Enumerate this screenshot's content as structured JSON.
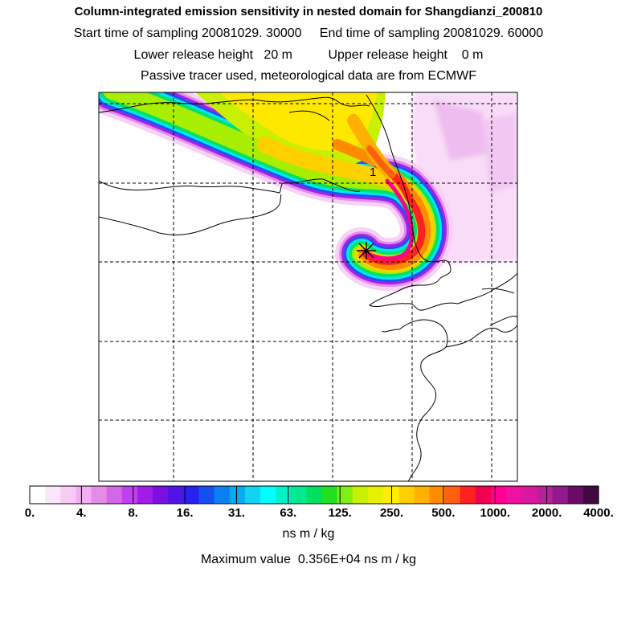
{
  "header": {
    "title": "Column-integrated emission sensitivity in nested domain for Shangdianzi_200810",
    "sampling": "Start time of sampling 20081029. 30000     End time of sampling 20081029. 60000",
    "release": "Lower release height   20 m          Upper release height    0 m",
    "tracer": "Passive tracer used, meteorological data are from ECMWF"
  },
  "map": {
    "release_marker_label": "1",
    "release_icon": "star-release-icon"
  },
  "legend": {
    "colors": [
      "#ffffff",
      "#fbe6fb",
      "#f6ccf6",
      "#f0b0f0",
      "#e48ce8",
      "#d467e6",
      "#c040f0",
      "#a21ce8",
      "#7a10e0",
      "#5014e6",
      "#2a20f0",
      "#1450f0",
      "#0a80f0",
      "#0aa8f0",
      "#10d2f2",
      "#00ffff",
      "#00f0c8",
      "#00e890",
      "#00e060",
      "#20e020",
      "#80ee10",
      "#c8f000",
      "#e6f000",
      "#ffee00",
      "#ffd000",
      "#ffb000",
      "#ff8c00",
      "#ff6010",
      "#ff2020",
      "#f00050",
      "#ff0090",
      "#f010a0",
      "#d818a0",
      "#b8209a",
      "#901a88",
      "#6a0c66",
      "#400a40"
    ],
    "tick_labels": [
      "0.",
      "4.",
      "8.",
      "16.",
      "31.",
      "63.",
      "125.",
      "250.",
      "500.",
      "1000.",
      "2000.",
      "4000."
    ],
    "units": "ns m / kg",
    "max_value_text": "Maximum value  0.356E+04 ns m / kg"
  }
}
